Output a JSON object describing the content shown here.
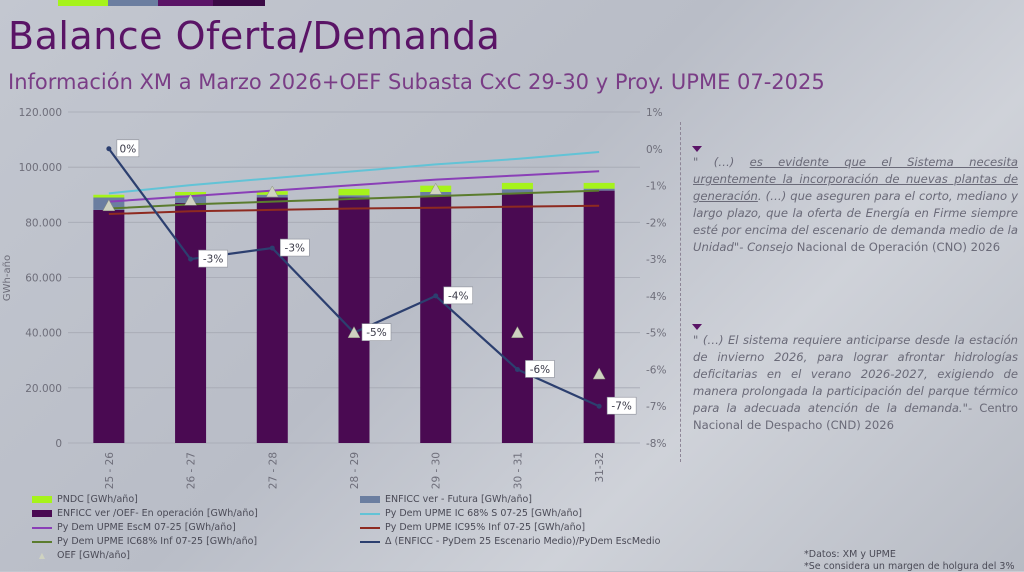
{
  "colors": {
    "pndc": "#a6f31b",
    "futura": "#6b7ea0",
    "operacion": "#4a0a52",
    "py_ic68s": "#62c3d6",
    "py_escm": "#8a3fb7",
    "py_ic95inf": "#8e2a20",
    "py_ic68inf": "#5b7c2e",
    "delta": "#2c3f6f",
    "oef": "#cfd3c1",
    "title": "#5a1466"
  },
  "header": {
    "title": "Balance Oferta/Demanda",
    "subtitle": "Información XM a Marzo 2026+OEF Subasta CxC 29-30 y Proy. UPME 07-2025"
  },
  "chart_data": {
    "type": "bar",
    "categories": [
      "25 - 26",
      "26 - 27",
      "27 - 28",
      "28 - 29",
      "29 - 30",
      "30 - 31",
      "31-32"
    ],
    "ylabel": "GWh-año",
    "ylim": [
      0,
      120000
    ],
    "y_ticks": [
      "0",
      "20.000",
      "40.000",
      "60.000",
      "80.000",
      "100.000",
      "120.000"
    ],
    "y2lim": [
      -8,
      1
    ],
    "y2_ticks": [
      "-8%",
      "-7%",
      "-6%",
      "-5%",
      "-4%",
      "-3%",
      "-2%",
      "-1%",
      "0%",
      "1%"
    ],
    "grid": true,
    "legend_position": "bottom",
    "series": [
      {
        "key": "operacion",
        "name": "ENFICC ver /OEF- En operación [GWh/año]",
        "type": "bar",
        "values": [
          84500,
          87000,
          89000,
          89000,
          89500,
          90500,
          91500
        ]
      },
      {
        "key": "futura",
        "name": "ENFICC ver - Futura [GWh/año]",
        "type": "bar",
        "values": [
          4500,
          2800,
          1000,
          800,
          1500,
          1500,
          700
        ]
      },
      {
        "key": "pndc",
        "name": "PNDC [GWh/año]",
        "type": "bar",
        "values": [
          1000,
          1200,
          1300,
          2300,
          2300,
          2300,
          2100
        ]
      },
      {
        "key": "py_ic68s",
        "name": "Py Dem UPME IC 68% S 07-25 [GWh/año]",
        "type": "line",
        "values": [
          90500,
          93500,
          96000,
          98500,
          101000,
          103000,
          105500
        ]
      },
      {
        "key": "py_escm",
        "name": "Py Dem UPME EscM 07-25 [GWh/año]",
        "type": "line",
        "values": [
          87500,
          89500,
          91500,
          93500,
          95500,
          97000,
          98500
        ]
      },
      {
        "key": "py_ic95inf",
        "name": "Py Dem UPME IC95% Inf 07-25 [GWh/año]",
        "type": "line",
        "values": [
          83000,
          84000,
          84500,
          85000,
          85300,
          85700,
          86000
        ]
      },
      {
        "key": "py_ic68inf",
        "name": "Py Dem UPME IC68% Inf 07-25 [GWh/año]",
        "type": "line",
        "values": [
          85000,
          86500,
          87500,
          88500,
          89500,
          90500,
          91500
        ]
      },
      {
        "key": "delta",
        "name": "Δ (ENFICC - PyDem 25 Escenario Medio)/PyDem EscMedio",
        "type": "line",
        "axis": "right",
        "values": [
          0,
          -3,
          -2.7,
          -5,
          -4,
          -6,
          -7
        ],
        "labels": [
          "0%",
          "-3%",
          "-3%",
          "-5%",
          "-4%",
          "-6%",
          "-7%"
        ]
      },
      {
        "key": "oef",
        "name": "OEF [GWh/año]",
        "type": "scatter",
        "values": [
          86000,
          88000,
          91000,
          40000,
          92000,
          40000,
          25000
        ]
      }
    ]
  },
  "quotes": [
    {
      "open": "\"",
      "pre": "(…) ",
      "underlined": "es evidente que el Sistema necesita urgentemente la incorporación de nuevas plantas de generación",
      "rest": ". (…) que aseguren para el corto, mediano y largo plazo, que la oferta de Energía en Firme siempre esté por encima del escenario de demanda medio de la Unidad\"- Consejo",
      "source": " Nacional de Operación (CNO) 2026"
    },
    {
      "open": "\"",
      "pre": "(…) ",
      "underlined": "",
      "rest": "El sistema requiere anticiparse desde la estación de invierno 2026, para lograr afrontar hidrologías deficitarias en el verano 2026-2027, exigiendo de manera prolongada la participación del parque térmico para la adecuada atención de la demanda.\"-",
      "source": " Centro Nacional de Despacho (CND) 2026"
    }
  ],
  "footnotes": [
    "*Datos: XM y UPME",
    "*Se considera un margen de holgura del 3%"
  ]
}
